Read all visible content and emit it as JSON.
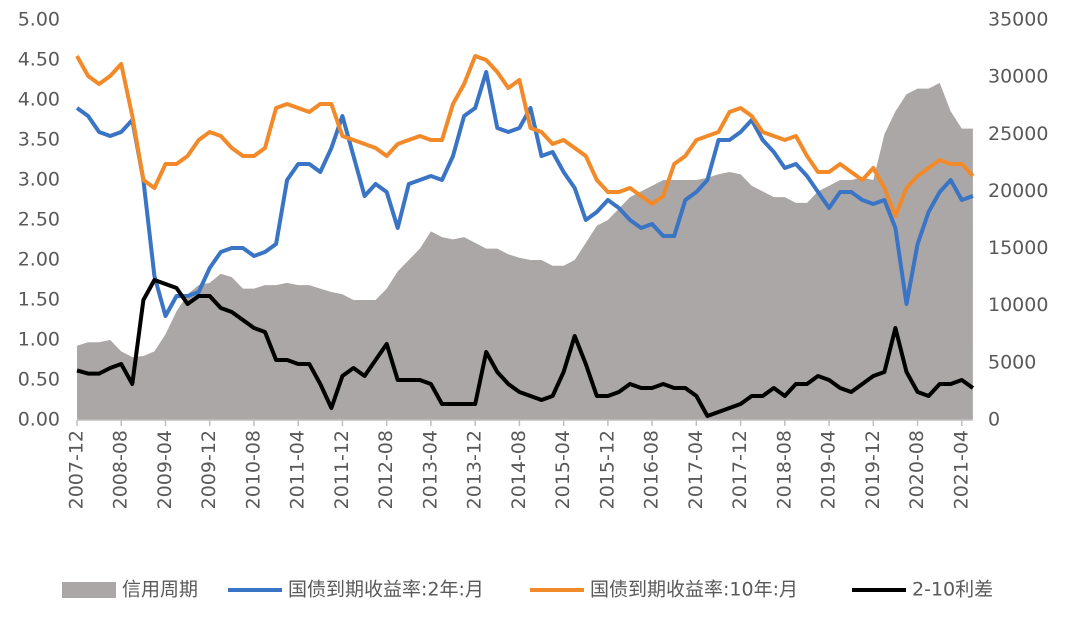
{
  "chart_data": {
    "type": "line",
    "categories": [
      "2007-12",
      null,
      null,
      null,
      "2008-08",
      null,
      null,
      null,
      "2009-04",
      null,
      null,
      null,
      "2009-12",
      null,
      null,
      null,
      "2010-08",
      null,
      null,
      null,
      "2011-04",
      null,
      null,
      null,
      "2011-12",
      null,
      null,
      null,
      "2012-08",
      null,
      null,
      null,
      "2013-04",
      null,
      null,
      null,
      "2013-12",
      null,
      null,
      null,
      "2014-08",
      null,
      null,
      null,
      "2015-04",
      null,
      null,
      null,
      "2015-12",
      null,
      null,
      null,
      "2016-08",
      null,
      null,
      null,
      "2017-04",
      null,
      null,
      null,
      "2017-12",
      null,
      null,
      null,
      "2018-08",
      null,
      null,
      null,
      "2019-04",
      null,
      null,
      null,
      "2019-12",
      null,
      null,
      null,
      "2020-08",
      null,
      null,
      null,
      "2021-04",
      null
    ],
    "series": [
      {
        "name": "信用周期",
        "color": "#aba7a7",
        "axis": "y2",
        "kind": "area",
        "values": [
          6500,
          6800,
          6800,
          7000,
          6000,
          5500,
          5600,
          6000,
          7500,
          9500,
          11000,
          11800,
          12000,
          12800,
          12500,
          11500,
          11500,
          11800,
          11800,
          12000,
          11800,
          11800,
          11500,
          11200,
          11000,
          10500,
          10500,
          10500,
          11500,
          13000,
          14000,
          15000,
          16500,
          16000,
          15800,
          16000,
          15500,
          15000,
          15000,
          14500,
          14200,
          14000,
          14000,
          13500,
          13500,
          14000,
          15500,
          17000,
          17500,
          18500,
          19500,
          20000,
          20500,
          21000,
          21000,
          21000,
          21000,
          21200,
          21500,
          21700,
          21500,
          20500,
          20000,
          19500,
          19500,
          19000,
          19000,
          20000,
          20500,
          21000,
          21000,
          21200,
          21000,
          25000,
          27000,
          28500,
          29000,
          29000,
          29500,
          27000,
          25500,
          25500
        ]
      },
      {
        "name": "国债到期收益率:2年:月",
        "color": "#3a74c4",
        "values": [
          3.9,
          3.8,
          3.6,
          3.55,
          3.6,
          3.75,
          3.0,
          1.8,
          1.3,
          1.55,
          1.55,
          1.6,
          1.9,
          2.1,
          2.15,
          2.15,
          2.05,
          2.1,
          2.2,
          3.0,
          3.2,
          3.2,
          3.1,
          3.4,
          3.8,
          3.3,
          2.8,
          2.95,
          2.85,
          2.4,
          2.95,
          3.0,
          3.05,
          3.0,
          3.3,
          3.8,
          3.9,
          4.35,
          3.65,
          3.6,
          3.65,
          3.9,
          3.3,
          3.35,
          3.1,
          2.9,
          2.5,
          2.6,
          2.75,
          2.65,
          2.5,
          2.4,
          2.45,
          2.3,
          2.3,
          2.75,
          2.85,
          3.0,
          3.5,
          3.5,
          3.6,
          3.75,
          3.5,
          3.35,
          3.15,
          3.2,
          3.05,
          2.85,
          2.65,
          2.85,
          2.85,
          2.75,
          2.7,
          2.75,
          2.4,
          1.45,
          2.2,
          2.6,
          2.85,
          3.0,
          2.75,
          2.8
        ]
      },
      {
        "name": "国债到期收益率:10年:月",
        "color": "#f28a2a",
        "values": [
          4.55,
          4.3,
          4.2,
          4.3,
          4.45,
          3.8,
          3.0,
          2.9,
          3.2,
          3.2,
          3.3,
          3.5,
          3.6,
          3.55,
          3.4,
          3.3,
          3.3,
          3.4,
          3.9,
          3.95,
          3.9,
          3.85,
          3.95,
          3.95,
          3.55,
          3.5,
          3.45,
          3.4,
          3.3,
          3.45,
          3.5,
          3.55,
          3.5,
          3.5,
          3.95,
          4.2,
          4.55,
          4.5,
          4.35,
          4.15,
          4.25,
          3.65,
          3.6,
          3.45,
          3.5,
          3.4,
          3.3,
          3.0,
          2.85,
          2.85,
          2.9,
          2.8,
          2.7,
          2.8,
          3.2,
          3.3,
          3.5,
          3.55,
          3.6,
          3.85,
          3.9,
          3.8,
          3.6,
          3.55,
          3.5,
          3.55,
          3.3,
          3.1,
          3.1,
          3.2,
          3.1,
          3.0,
          3.15,
          2.9,
          2.55,
          2.9,
          3.05,
          3.15,
          3.25,
          3.2,
          3.2,
          3.05
        ]
      },
      {
        "name": "2-10利差",
        "color": "#000000",
        "values": [
          0.62,
          0.58,
          0.58,
          0.65,
          0.7,
          0.45,
          1.5,
          1.75,
          1.7,
          1.65,
          1.45,
          1.55,
          1.55,
          1.4,
          1.35,
          1.25,
          1.15,
          1.1,
          0.75,
          0.75,
          0.7,
          0.7,
          0.45,
          0.15,
          0.55,
          0.65,
          0.55,
          0.75,
          0.95,
          0.5,
          0.5,
          0.5,
          0.45,
          0.2,
          0.2,
          0.2,
          0.2,
          0.85,
          0.6,
          0.45,
          0.35,
          0.3,
          0.25,
          0.3,
          0.6,
          1.05,
          0.7,
          0.3,
          0.3,
          0.35,
          0.45,
          0.4,
          0.4,
          0.45,
          0.4,
          0.4,
          0.3,
          0.05,
          0.1,
          0.15,
          0.2,
          0.3,
          0.3,
          0.4,
          0.3,
          0.45,
          0.45,
          0.55,
          0.5,
          0.4,
          0.35,
          0.45,
          0.55,
          0.6,
          1.15,
          0.6,
          0.35,
          0.3,
          0.45,
          0.45,
          0.5,
          0.4
        ]
      }
    ],
    "ylim": [
      0,
      5
    ],
    "yticks": [
      {
        "value": 0,
        "label": "0.00"
      },
      {
        "value": 0.5,
        "label": "0.50"
      },
      {
        "value": 1,
        "label": "1.00"
      },
      {
        "value": 1.5,
        "label": "1.50"
      },
      {
        "value": 2,
        "label": "2.00"
      },
      {
        "value": 2.5,
        "label": "2.50"
      },
      {
        "value": 3,
        "label": "3.00"
      },
      {
        "value": 3.5,
        "label": "3.50"
      },
      {
        "value": 4,
        "label": "4.00"
      },
      {
        "value": 4.5,
        "label": "4.50"
      },
      {
        "value": 5,
        "label": "5.00"
      }
    ],
    "y2lim": [
      0,
      35000
    ],
    "y2ticks": [
      0,
      5000,
      10000,
      15000,
      20000,
      25000,
      30000,
      35000
    ],
    "legend": "bottom"
  }
}
